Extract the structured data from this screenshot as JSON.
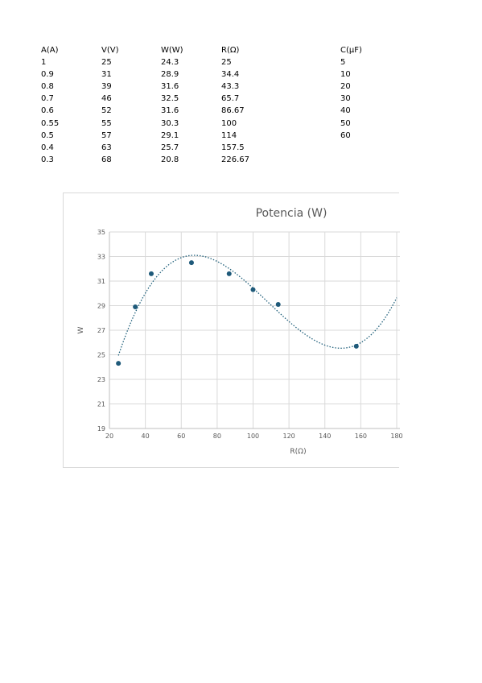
{
  "table": {
    "headers": [
      "A(A)",
      "V(V)",
      "W(W)",
      "R(Ω)",
      "C(μF)"
    ],
    "columns": [
      [
        "1",
        "0.9",
        "0.8",
        "0.7",
        "0.6",
        "0.55",
        "0.5",
        "0.4",
        "0.3"
      ],
      [
        "25",
        "31",
        "39",
        "46",
        "52",
        "55",
        "57",
        "63",
        "68"
      ],
      [
        "24.3",
        "28.9",
        "31.6",
        "32.5",
        "31.6",
        "30.3",
        "29.1",
        "25.7",
        "20.8"
      ],
      [
        "25",
        "34.4",
        "43.3",
        "65.7",
        "86.67",
        "100",
        "114",
        "157.5",
        "226.67"
      ],
      [
        "5",
        "10",
        "20",
        "30",
        "40",
        "50",
        "60"
      ]
    ]
  },
  "chart_data": {
    "type": "scatter",
    "title": "Potencia (W)",
    "xlabel": "R(Ω)",
    "ylabel": "W",
    "xlim": [
      20,
      180
    ],
    "ylim": [
      19,
      35
    ],
    "xticks": [
      20,
      40,
      60,
      80,
      100,
      120,
      140,
      160,
      180
    ],
    "yticks": [
      19,
      21,
      23,
      25,
      27,
      29,
      31,
      33,
      35
    ],
    "x": [
      25,
      34.4,
      43.3,
      65.7,
      86.67,
      100,
      114,
      157.5
    ],
    "y": [
      24.3,
      28.9,
      31.6,
      32.5,
      31.6,
      30.3,
      29.1,
      25.7
    ],
    "trendline": {
      "type": "polynomial",
      "style": "dotted",
      "color": "#1f5f7a"
    },
    "point_color": "#1f5a7a",
    "grid": true,
    "legend": "none"
  }
}
